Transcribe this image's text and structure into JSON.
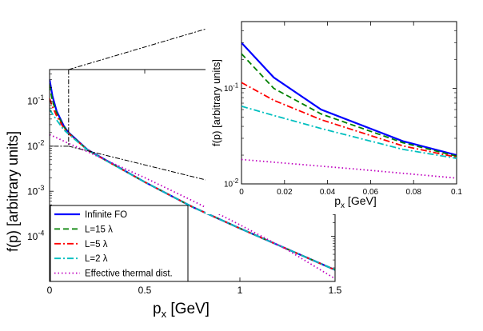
{
  "chart_data": [
    {
      "id": "main",
      "type": "line",
      "title": "",
      "xlabel": "p",
      "xlabel_sub": "x",
      "xlabel_unit": " [GeV]",
      "ylabel": "f(p) [arbitrary units]",
      "xlim": [
        0,
        1.5
      ],
      "ylim": [
        1e-05,
        0.5
      ],
      "yscale": "log",
      "grid": false,
      "legend_position": "bottom-left",
      "x_ticks": [
        0,
        0.5,
        1,
        1.5
      ],
      "x_tick_labels": [
        "0",
        "0.5",
        "1",
        "1.5"
      ],
      "y_ticks": [
        0.1,
        0.01,
        0.001,
        0.0001
      ],
      "y_tick_labels": [
        {
          "base": "10",
          "exp": "-1"
        },
        {
          "base": "10",
          "exp": "-2"
        },
        {
          "base": "10",
          "exp": "-3"
        },
        {
          "base": "10",
          "exp": "-4"
        }
      ],
      "series": [
        {
          "name": "Infinite FO",
          "legend": "Infinite FO",
          "color": "#0000ff",
          "dash": "solid",
          "x": [
            0,
            0.015,
            0.037,
            0.075,
            0.1,
            0.2,
            0.3,
            0.5,
            0.75,
            1.0,
            1.25,
            1.5
          ],
          "y": [
            0.3,
            0.13,
            0.06,
            0.028,
            0.02,
            0.0083,
            0.0048,
            0.0016,
            0.00045,
            0.00015,
            5.2e-05,
            1.8e-05
          ]
        },
        {
          "name": "L=15 λ",
          "legend": "L=15 λ",
          "color": "#008000",
          "dash": "dashed",
          "x": [
            0,
            0.015,
            0.037,
            0.075,
            0.1,
            0.2,
            0.3,
            0.5,
            0.75,
            1.0,
            1.25,
            1.5
          ],
          "y": [
            0.23,
            0.1,
            0.054,
            0.027,
            0.0195,
            0.0082,
            0.0047,
            0.0016,
            0.00045,
            0.00015,
            5.2e-05,
            1.8e-05
          ]
        },
        {
          "name": "L=5 λ",
          "legend": "L=5 λ",
          "color": "#ff0000",
          "dash": "dashdot",
          "x": [
            0,
            0.015,
            0.037,
            0.075,
            0.1,
            0.2,
            0.3,
            0.5,
            0.75,
            1.0,
            1.25,
            1.5
          ],
          "y": [
            0.115,
            0.075,
            0.047,
            0.025,
            0.019,
            0.0082,
            0.0047,
            0.0016,
            0.00045,
            0.00015,
            5.2e-05,
            1.8e-05
          ]
        },
        {
          "name": "L=2 λ",
          "legend": "L=2 λ",
          "color": "#00bfbf",
          "dash": "dashdot",
          "x": [
            0,
            0.015,
            0.037,
            0.075,
            0.1,
            0.2,
            0.3,
            0.5,
            0.75,
            1.0,
            1.25,
            1.5
          ],
          "y": [
            0.065,
            0.052,
            0.038,
            0.023,
            0.0185,
            0.0081,
            0.0047,
            0.0016,
            0.00045,
            0.00015,
            5.2e-05,
            1.8e-05
          ]
        },
        {
          "name": "Effective thermal dist.",
          "legend": "Effective thermal dist.",
          "color": "#bf00bf",
          "dash": "dotted",
          "x": [
            0,
            0.05,
            0.1,
            0.2,
            0.3,
            0.5,
            0.75,
            1.0,
            1.25,
            1.5
          ],
          "y": [
            0.018,
            0.0145,
            0.0115,
            0.0075,
            0.0048,
            0.002,
            0.00062,
            0.00018,
            5e-05,
            1.15e-05
          ]
        }
      ]
    },
    {
      "id": "inset",
      "type": "line",
      "title": "",
      "xlabel": "p",
      "xlabel_sub": "x",
      "xlabel_unit": " [GeV]",
      "ylabel": "f(p) [arbitrary units]",
      "xlim": [
        0,
        0.1
      ],
      "ylim": [
        0.01,
        0.5
      ],
      "yscale": "log",
      "grid": false,
      "x_ticks": [
        0,
        0.02,
        0.04,
        0.06,
        0.08,
        0.1
      ],
      "x_tick_labels": [
        "0",
        "0.02",
        "0.04",
        "0.06",
        "0.08",
        "0.1"
      ],
      "y_ticks": [
        0.1,
        0.01
      ],
      "y_tick_labels": [
        {
          "base": "10",
          "exp": "-1"
        },
        {
          "base": "10",
          "exp": "-2"
        }
      ],
      "series": [
        {
          "name": "Infinite FO",
          "color": "#0000ff",
          "dash": "solid",
          "x": [
            0,
            0.015,
            0.037,
            0.075,
            0.1
          ],
          "y": [
            0.3,
            0.13,
            0.06,
            0.028,
            0.02
          ]
        },
        {
          "name": "L=15 λ",
          "color": "#008000",
          "dash": "dashed",
          "x": [
            0,
            0.015,
            0.037,
            0.075,
            0.1
          ],
          "y": [
            0.23,
            0.1,
            0.054,
            0.027,
            0.0195
          ]
        },
        {
          "name": "L=5 λ",
          "color": "#ff0000",
          "dash": "dashdot",
          "x": [
            0,
            0.015,
            0.037,
            0.075,
            0.1
          ],
          "y": [
            0.115,
            0.075,
            0.047,
            0.025,
            0.019
          ]
        },
        {
          "name": "L=2 λ",
          "color": "#00bfbf",
          "dash": "dashdot",
          "x": [
            0,
            0.015,
            0.037,
            0.075,
            0.1
          ],
          "y": [
            0.065,
            0.052,
            0.038,
            0.023,
            0.0185
          ]
        },
        {
          "name": "Effective thermal dist.",
          "color": "#bf00bf",
          "dash": "dotted",
          "x": [
            0,
            0.05,
            0.1
          ],
          "y": [
            0.018,
            0.0145,
            0.0115
          ]
        }
      ]
    }
  ]
}
